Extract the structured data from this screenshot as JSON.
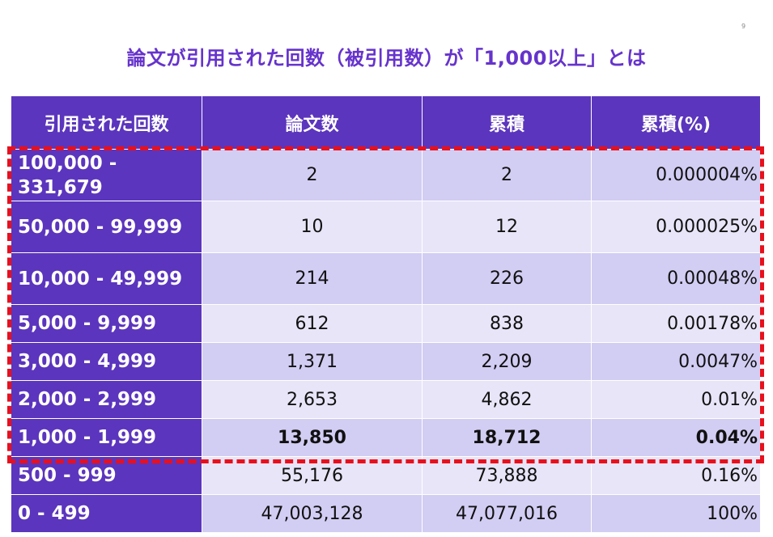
{
  "page_number": "9",
  "title": "論文が引用された回数（被引用数）が「1,000以上」とは",
  "table": {
    "headers": [
      "引用された回数",
      "論文数",
      "累積",
      "累積(%)"
    ],
    "rows": [
      {
        "range": "100,000 - 331,679",
        "papers": "2",
        "cumulative": "2",
        "percent": "0.000004%"
      },
      {
        "range": "50,000 - 99,999",
        "papers": "10",
        "cumulative": "12",
        "percent": "0.000025%"
      },
      {
        "range": "10,000 - 49,999",
        "papers": "214",
        "cumulative": "226",
        "percent": "0.00048%"
      },
      {
        "range": "5,000 - 9,999",
        "papers": "612",
        "cumulative": "838",
        "percent": "0.00178%"
      },
      {
        "range": "3,000 - 4,999",
        "papers": "1,371",
        "cumulative": "2,209",
        "percent": "0.0047%"
      },
      {
        "range": "2,000 - 2,999",
        "papers": "2,653",
        "cumulative": "4,862",
        "percent": "0.01%"
      },
      {
        "range": "1,000 - 1,999",
        "papers": "13,850",
        "cumulative": "18,712",
        "percent": "0.04%"
      },
      {
        "range": "500 - 999",
        "papers": "55,176",
        "cumulative": "73,888",
        "percent": "0.16%"
      },
      {
        "range": "0 - 499",
        "papers": "47,003,128",
        "cumulative": "47,077,016",
        "percent": "100%"
      }
    ]
  },
  "colors": {
    "title": "#6633cc",
    "header_bg": "#5b35bd",
    "row_odd": "#d2cdf3",
    "row_even": "#e8e5f8",
    "highlight_border": "#e8101c"
  }
}
